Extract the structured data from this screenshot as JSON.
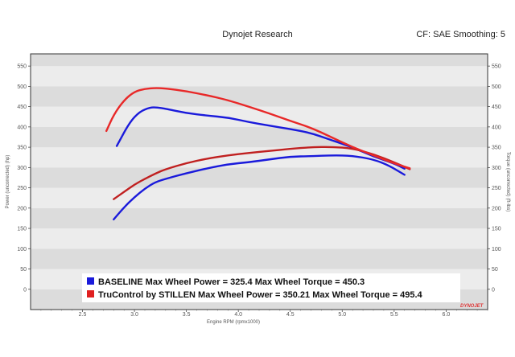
{
  "header": {
    "title": "Dynojet Research",
    "cf": "CF: SAE Smoothing: 5"
  },
  "chart_data": {
    "type": "line",
    "xlabel": "Engine RPM (rpmx1000)",
    "ylabel_left": "Power (uncorrected) (hp)",
    "ylabel_right": "Torque (uncorrected) (ft-lbs)",
    "xlim": [
      2.0,
      6.4
    ],
    "ylim": [
      -50,
      580
    ],
    "x_ticks": [
      "2.5",
      "3.0",
      "3.5",
      "4.0",
      "4.5",
      "5.0",
      "5.5",
      "6.0"
    ],
    "y_ticks": [
      "0",
      "50",
      "100",
      "150",
      "200",
      "250",
      "300",
      "350",
      "400",
      "450",
      "500",
      "550"
    ],
    "grid": "horizontal bands",
    "legend_position": "bottom",
    "legend": [
      {
        "label": "BASELINE Max Wheel Power = 325.4 Max Wheel Torque = 450.3",
        "color": "#1a1adb"
      },
      {
        "label": "TruControl by STILLEN Max Wheel Power = 350.21 Max Wheel Torque = 495.4",
        "color": "#e02020"
      }
    ],
    "series": [
      {
        "color": "#1a1adb",
        "measure": "power",
        "x": [
          2.8,
          2.9,
          3.0,
          3.1,
          3.2,
          3.3,
          3.5,
          3.7,
          3.9,
          4.1,
          4.3,
          4.5,
          4.7,
          4.9,
          5.1,
          5.3,
          5.45,
          5.6
        ],
        "y": [
          172,
          202,
          227,
          248,
          264,
          272,
          286,
          298,
          308,
          313,
          320,
          327,
          328,
          330,
          329,
          320,
          305,
          282
        ]
      },
      {
        "color": "#1a1adb",
        "measure": "torque",
        "x": [
          2.83,
          2.95,
          3.05,
          3.15,
          3.22,
          3.3,
          3.5,
          3.7,
          3.9,
          4.1,
          4.3,
          4.5,
          4.7,
          4.9,
          5.1,
          5.3,
          5.5,
          5.6
        ],
        "y": [
          353,
          410,
          438,
          448,
          448,
          445,
          434,
          428,
          423,
          412,
          403,
          395,
          385,
          367,
          350,
          327,
          310,
          297
        ]
      },
      {
        "color": "#c02020",
        "measure": "power",
        "x": [
          2.8,
          2.9,
          3.0,
          3.1,
          3.2,
          3.3,
          3.5,
          3.7,
          3.9,
          4.1,
          4.3,
          4.5,
          4.7,
          4.9,
          5.1,
          5.3,
          5.5,
          5.65
        ],
        "y": [
          222,
          240,
          258,
          272,
          285,
          296,
          311,
          322,
          330,
          336,
          341,
          346,
          350,
          351,
          347,
          333,
          313,
          296
        ]
      },
      {
        "color": "#e82828",
        "measure": "torque",
        "x": [
          2.73,
          2.8,
          2.9,
          3.0,
          3.1,
          3.2,
          3.3,
          3.5,
          3.7,
          3.9,
          4.1,
          4.3,
          4.5,
          4.7,
          4.9,
          5.1,
          5.3,
          5.5,
          5.65
        ],
        "y": [
          390,
          430,
          466,
          487,
          494,
          496,
          495,
          488,
          478,
          466,
          450,
          433,
          415,
          398,
          374,
          350,
          330,
          310,
          298
        ]
      }
    ]
  },
  "brand": "DYNOJET"
}
